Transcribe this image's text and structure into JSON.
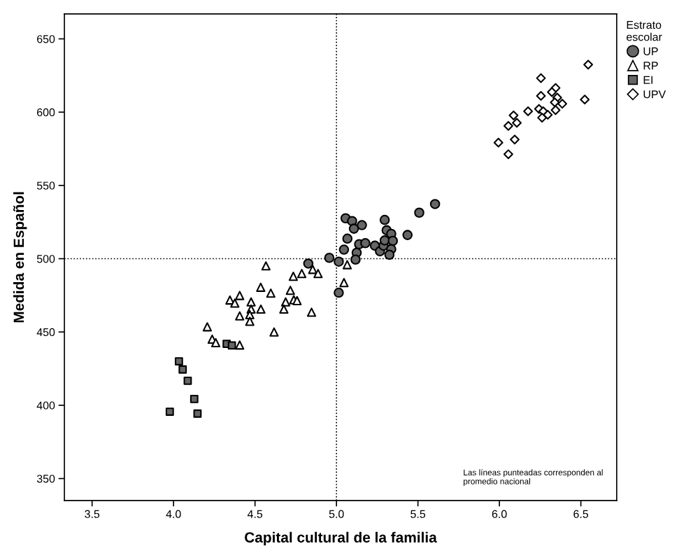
{
  "chart_data": {
    "type": "scatter",
    "xlabel": "Capital cultural de la familia",
    "ylabel": "Medida en Español",
    "legend_title": "Estrato\nescolar",
    "legend": "top right",
    "xlim": [
      3.33,
      6.72
    ],
    "xticks": [
      {
        "value": 3.5,
        "label": "3.5"
      },
      {
        "value": 4,
        "label": "4.0"
      },
      {
        "value": 4.5,
        "label": "4.5"
      },
      {
        "value": 5,
        "label": "5.0"
      },
      {
        "value": 5.5,
        "label": "5.5"
      },
      {
        "value": 6,
        "label": "6.0"
      },
      {
        "value": 6.5,
        "label": "6.5"
      }
    ],
    "ylim": [
      335,
      667
    ],
    "yticks": [
      350,
      400,
      450,
      500,
      550,
      600,
      650
    ],
    "grid": false,
    "ref_lines": [
      {
        "axis": "x",
        "value": 5,
        "color": "#000000",
        "line_style": "dotted"
      },
      {
        "axis": "y",
        "value": 500,
        "color": "#000000",
        "line_style": "dotted"
      }
    ],
    "annotations": [
      "Las líneas punteadas corresponden al\npromedio nacional"
    ],
    "series": [
      {
        "name": "UP",
        "marker": "circle",
        "color": "#666666",
        "x": [
          4.827,
          4.956,
          5.014,
          5.014,
          5.056,
          5.096,
          5.107,
          5.156,
          5.067,
          5.046,
          5.124,
          5.117,
          5.139,
          5.177,
          5.236,
          5.267,
          5.289,
          5.296,
          5.308,
          5.336,
          5.296,
          5.346,
          5.336,
          5.325,
          5.436,
          5.508,
          5.605
        ],
        "values": [
          496.7,
          500.6,
          498.0,
          476.8,
          527.6,
          525.7,
          520.5,
          522.9,
          513.7,
          506.2,
          504.1,
          499.4,
          509.9,
          510.6,
          508.9,
          505.1,
          508.9,
          526.5,
          519.4,
          517.0,
          512.5,
          512.2,
          506.5,
          502.7,
          516.2,
          531.4,
          537.3
        ]
      },
      {
        "name": "RP",
        "marker": "triangle",
        "color": "#ffffff",
        "x": [
          4.567,
          4.735,
          4.787,
          4.854,
          4.887,
          4.535,
          4.597,
          4.717,
          4.406,
          4.346,
          4.376,
          4.476,
          4.688,
          4.738,
          4.758,
          4.476,
          4.536,
          4.677,
          4.847,
          4.406,
          4.468,
          4.468,
          4.207,
          4.237,
          4.259,
          4.406,
          4.617,
          5.066,
          5.046
        ],
        "values": [
          495.1,
          488.0,
          489.9,
          492.7,
          489.9,
          480.5,
          476.5,
          478.4,
          474.9,
          471.8,
          469.7,
          470.5,
          470.5,
          472.0,
          471.4,
          465.6,
          465.6,
          465.6,
          463.5,
          461.0,
          461.8,
          457.3,
          453.5,
          445.1,
          442.7,
          441.1,
          450.0,
          495.9,
          483.7
        ]
      },
      {
        "name": "EI",
        "marker": "square",
        "color": "#666666",
        "x": [
          4.033,
          4.056,
          4.087,
          4.127,
          3.977,
          4.147,
          4.326,
          4.358
        ],
        "values": [
          430.0,
          424.4,
          416.7,
          404.3,
          395.6,
          394.3,
          441.9,
          440.8
        ]
      },
      {
        "name": "UPV",
        "marker": "diamond",
        "color": "#ffffff",
        "x": [
          6.545,
          6.524,
          6.255,
          6.255,
          6.345,
          6.322,
          6.355,
          6.34,
          6.386,
          6.345,
          6.243,
          6.269,
          6.297,
          6.262,
          6.176,
          6.087,
          6.107,
          6.055,
          5.994,
          6.094,
          6.055
        ],
        "values": [
          632.4,
          608.6,
          623.2,
          611.1,
          616.5,
          613.7,
          609.9,
          606.7,
          605.7,
          601.4,
          602.2,
          600.6,
          598.2,
          596.2,
          600.6,
          597.8,
          592.7,
          590.6,
          579.2,
          581.3,
          571.3
        ]
      }
    ]
  }
}
